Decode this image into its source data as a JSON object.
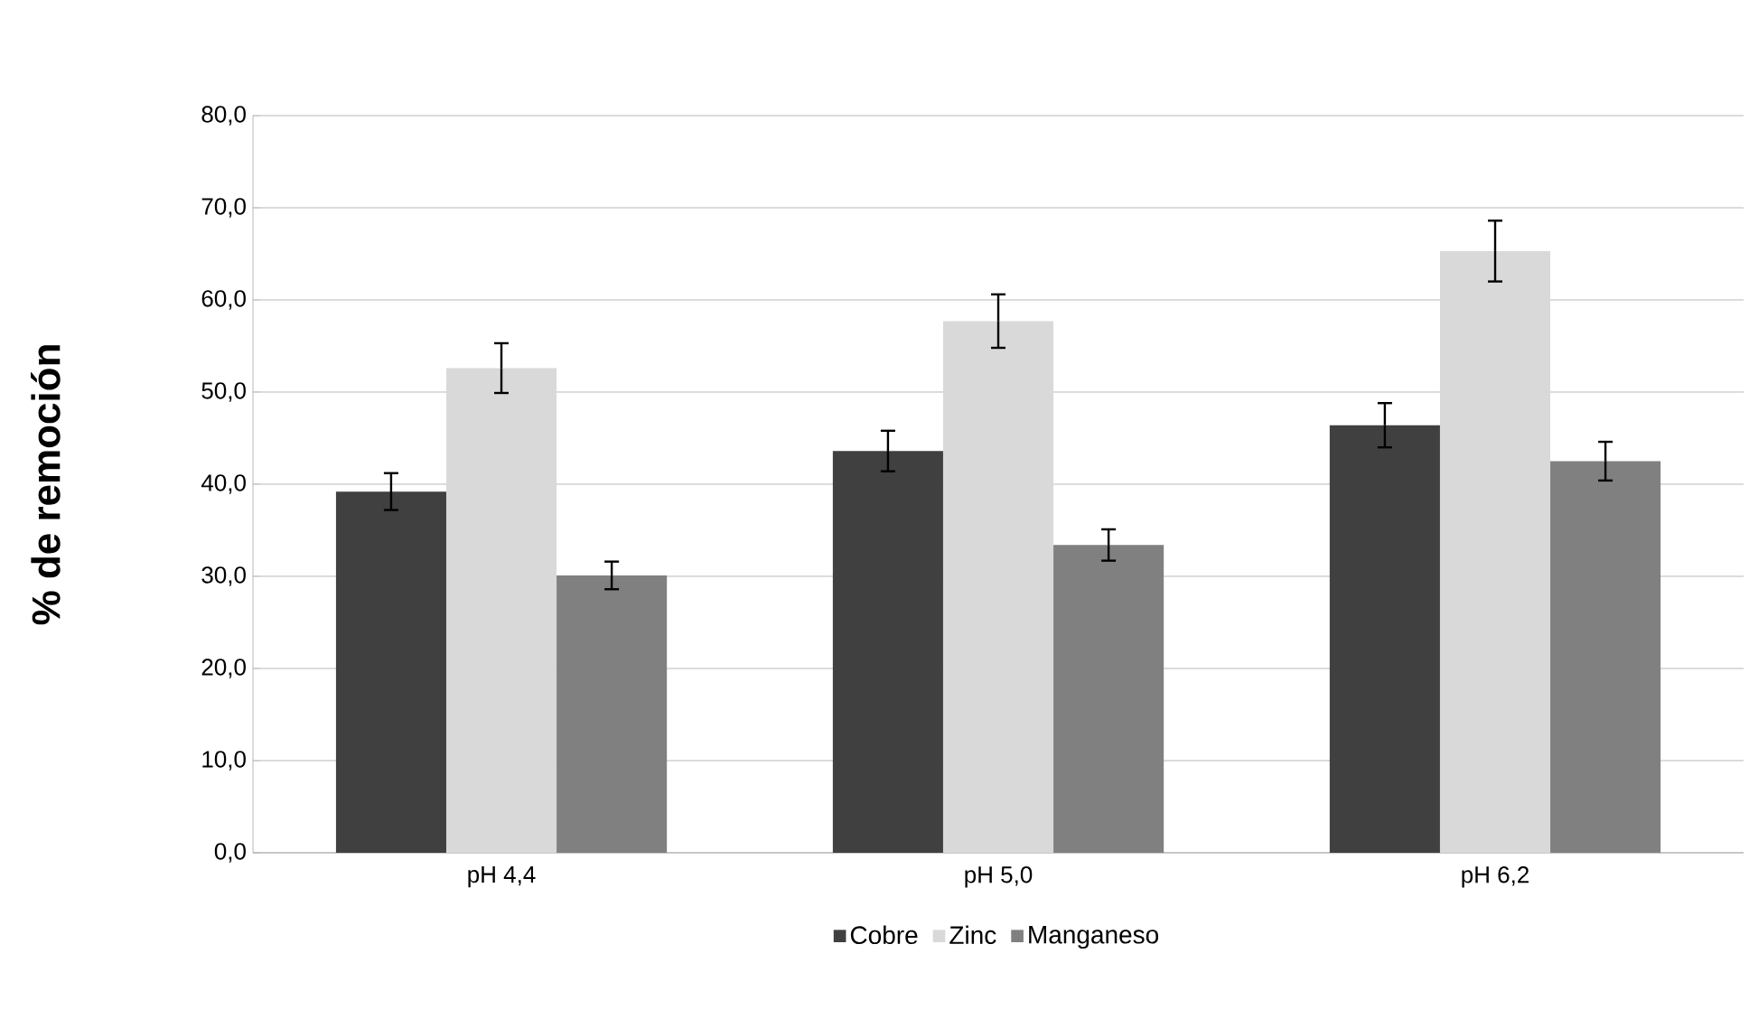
{
  "chart_data": {
    "type": "bar",
    "ylabel": "% de remoción",
    "categories": [
      "pH 4,4",
      "pH 5,0",
      "pH 6,2"
    ],
    "series": [
      {
        "name": "Cobre",
        "color": "#404040",
        "values": [
          39.2,
          43.6,
          46.4
        ],
        "errors": [
          2.0,
          2.2,
          2.4
        ]
      },
      {
        "name": "Zinc",
        "color": "#d9d9d9",
        "values": [
          52.6,
          57.7,
          65.3
        ],
        "errors": [
          2.7,
          2.9,
          3.3
        ]
      },
      {
        "name": "Manganeso",
        "color": "#808080",
        "values": [
          30.1,
          33.4,
          42.5
        ],
        "errors": [
          1.5,
          1.7,
          2.1
        ]
      }
    ],
    "ylim": [
      0,
      80
    ],
    "yticks": [
      {
        "value": 0,
        "label": "0,0"
      },
      {
        "value": 10,
        "label": "10,0"
      },
      {
        "value": 20,
        "label": "20,0"
      },
      {
        "value": 30,
        "label": "30,0"
      },
      {
        "value": 40,
        "label": "40,0"
      },
      {
        "value": 50,
        "label": "50,0"
      },
      {
        "value": 60,
        "label": "60,0"
      },
      {
        "value": 70,
        "label": "70,0"
      },
      {
        "value": 80,
        "label": "80,0"
      }
    ],
    "grid": "y",
    "legend": "bottom"
  }
}
